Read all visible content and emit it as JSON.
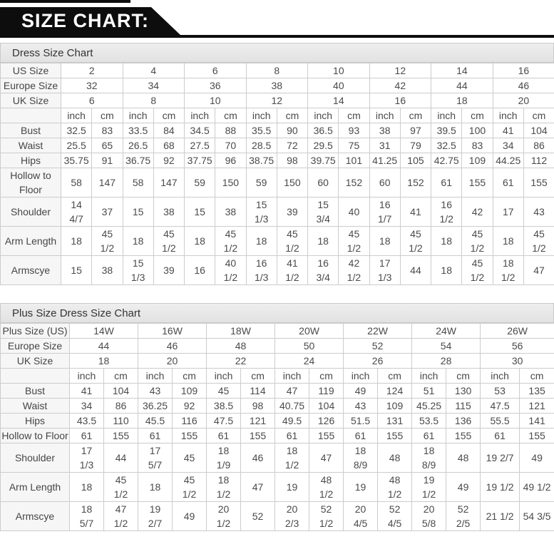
{
  "banner": {
    "title": "SIZE CHART:"
  },
  "unit_labels": [
    "inch",
    "cm"
  ],
  "tables": [
    {
      "title": "Dress Size Chart",
      "size_rows": [
        {
          "label": "US Size",
          "values": [
            "2",
            "4",
            "6",
            "8",
            "10",
            "12",
            "14",
            "16"
          ]
        },
        {
          "label": "Europe Size",
          "values": [
            "32",
            "34",
            "36",
            "38",
            "40",
            "42",
            "44",
            "46"
          ]
        },
        {
          "label": "UK Size",
          "values": [
            "6",
            "8",
            "10",
            "12",
            "14",
            "16",
            "18",
            "20"
          ]
        }
      ],
      "measure_rows": [
        {
          "label": "Bust",
          "cells": [
            "32.5",
            "83",
            "33.5",
            "84",
            "34.5",
            "88",
            "35.5",
            "90",
            "36.5",
            "93",
            "38",
            "97",
            "39.5",
            "100",
            "41",
            "104"
          ]
        },
        {
          "label": "Waist",
          "cells": [
            "25.5",
            "65",
            "26.5",
            "68",
            "27.5",
            "70",
            "28.5",
            "72",
            "29.5",
            "75",
            "31",
            "79",
            "32.5",
            "83",
            "34",
            "86"
          ]
        },
        {
          "label": "Hips",
          "cells": [
            "35.75",
            "91",
            "36.75",
            "92",
            "37.75",
            "96",
            "38.75",
            "98",
            "39.75",
            "101",
            "41.25",
            "105",
            "42.75",
            "109",
            "44.25",
            "112"
          ]
        },
        {
          "label": "Hollow to Floor",
          "cells": [
            "58",
            "147",
            "58",
            "147",
            "59",
            "150",
            "59",
            "150",
            "60",
            "152",
            "60",
            "152",
            "61",
            "155",
            "61",
            "155"
          ]
        },
        {
          "label": "Shoulder",
          "cells": [
            "14 4/7",
            "37",
            "15",
            "38",
            "15",
            "38",
            "15 1/3",
            "39",
            "15 3/4",
            "40",
            "16 1/7",
            "41",
            "16 1/2",
            "42",
            "17",
            "43"
          ]
        },
        {
          "label": "Arm Length",
          "cells": [
            "18",
            "45 1/2",
            "18",
            "45 1/2",
            "18",
            "45 1/2",
            "18",
            "45 1/2",
            "18",
            "45 1/2",
            "18",
            "45 1/2",
            "18",
            "45 1/2",
            "18",
            "45 1/2"
          ]
        },
        {
          "label": "Armscye",
          "cells": [
            "15",
            "38",
            "15 1/3",
            "39",
            "16",
            "40 1/2",
            "16 1/3",
            "41 1/2",
            "16 3/4",
            "42 1/2",
            "17 1/3",
            "44",
            "18",
            "45 1/2",
            "18 1/2",
            "47"
          ]
        }
      ]
    },
    {
      "title": "Plus Size Dress Size Chart",
      "size_rows": [
        {
          "label": "Plus Size (US)",
          "values": [
            "14W",
            "16W",
            "18W",
            "20W",
            "22W",
            "24W",
            "26W"
          ]
        },
        {
          "label": "Europe Size",
          "values": [
            "44",
            "46",
            "48",
            "50",
            "52",
            "54",
            "56"
          ]
        },
        {
          "label": "UK Size",
          "values": [
            "18",
            "20",
            "22",
            "24",
            "26",
            "28",
            "30"
          ]
        }
      ],
      "measure_rows": [
        {
          "label": "Bust",
          "cells": [
            "41",
            "104",
            "43",
            "109",
            "45",
            "114",
            "47",
            "119",
            "49",
            "124",
            "51",
            "130",
            "53",
            "135"
          ]
        },
        {
          "label": "Waist",
          "cells": [
            "34",
            "86",
            "36.25",
            "92",
            "38.5",
            "98",
            "40.75",
            "104",
            "43",
            "109",
            "45.25",
            "115",
            "47.5",
            "121"
          ]
        },
        {
          "label": "Hips",
          "cells": [
            "43.5",
            "110",
            "45.5",
            "116",
            "47.5",
            "121",
            "49.5",
            "126",
            "51.5",
            "131",
            "53.5",
            "136",
            "55.5",
            "141"
          ]
        },
        {
          "label": "Hollow to Floor",
          "cells": [
            "61",
            "155",
            "61",
            "155",
            "61",
            "155",
            "61",
            "155",
            "61",
            "155",
            "61",
            "155",
            "61",
            "155"
          ]
        },
        {
          "label": "Shoulder",
          "cells": [
            "17 1/3",
            "44",
            "17 5/7",
            "45",
            "18 1/9",
            "46",
            "18 1/2",
            "47",
            "18 8/9",
            "48",
            "18 8/9",
            "48",
            "19 2/7",
            "49"
          ]
        },
        {
          "label": "Arm Length",
          "cells": [
            "18",
            "45 1/2",
            "18",
            "45 1/2",
            "18 1/2",
            "47",
            "19",
            "48 1/2",
            "19",
            "48 1/2",
            "19 1/2",
            "49",
            "19 1/2",
            "49 1/2"
          ]
        },
        {
          "label": "Armscye",
          "cells": [
            "18 5/7",
            "47 1/2",
            "19 2/7",
            "49",
            "20 1/2",
            "52",
            "20 2/3",
            "52 1/2",
            "20 4/5",
            "52 4/5",
            "20 5/8",
            "52 2/5",
            "21 1/2",
            "54 3/5"
          ]
        }
      ]
    }
  ],
  "colors": {
    "banner_bg": "#0d0d0d",
    "banner_text": "#ffffff",
    "title_bar_bg": "#e8e8e8",
    "table_border": "#cccccc",
    "label_cell_bg": "#f6f6f6",
    "cell_text": "#4a4a4a"
  }
}
